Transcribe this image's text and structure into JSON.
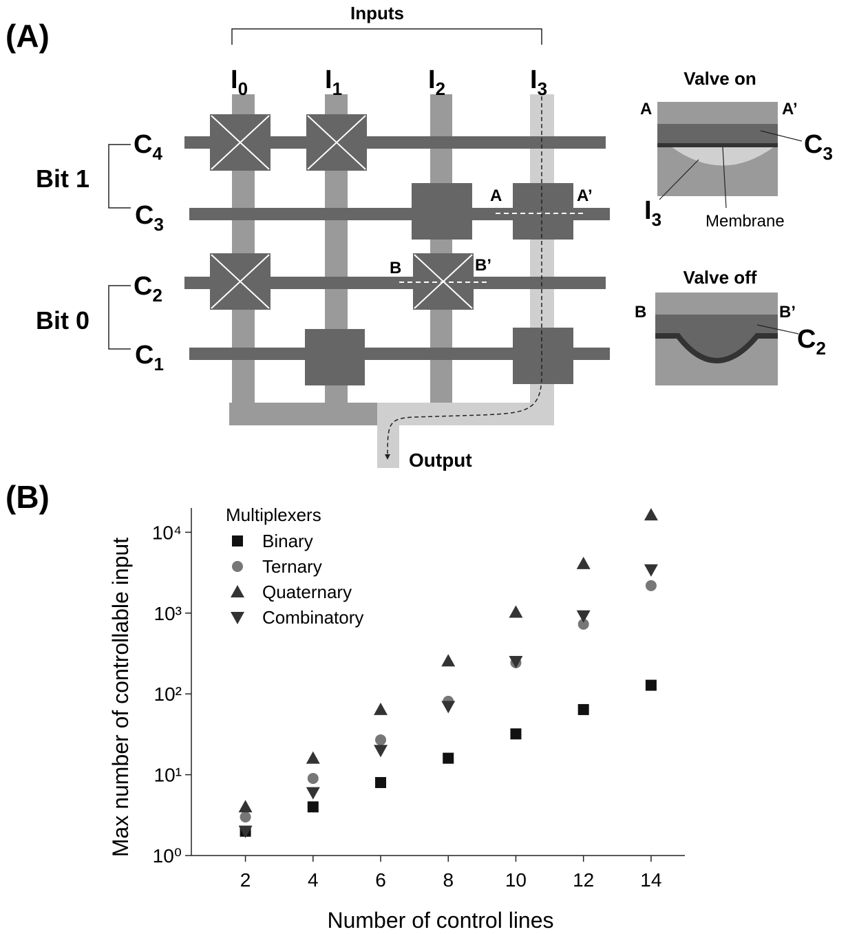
{
  "panel_a": {
    "label": "(A)",
    "inputs_title": "Inputs",
    "inputs": [
      {
        "main": "I",
        "sub": "0"
      },
      {
        "main": "I",
        "sub": "1"
      },
      {
        "main": "I",
        "sub": "2"
      },
      {
        "main": "I",
        "sub": "3"
      }
    ],
    "controls": [
      {
        "main": "C",
        "sub": "4"
      },
      {
        "main": "C",
        "sub": "3"
      },
      {
        "main": "C",
        "sub": "2"
      },
      {
        "main": "C",
        "sub": "1"
      }
    ],
    "bits": [
      "Bit 1",
      "Bit 0"
    ],
    "section_marks": [
      "A",
      "A’",
      "B",
      "B’"
    ],
    "output": "Output",
    "valve_on": {
      "title": "Valve on",
      "left": "A",
      "right": "A’",
      "control": {
        "main": "C",
        "sub": "3"
      },
      "input": {
        "main": "I",
        "sub": "3"
      },
      "membrane": "Membrane"
    },
    "valve_off": {
      "title": "Valve off",
      "left": "B",
      "right": "B’",
      "control": {
        "main": "C",
        "sub": "2"
      }
    }
  },
  "chart_data": {
    "type": "scatter",
    "panel_label": "(B)",
    "x_label": "Number of control lines",
    "y_label": "Max number of controllable input",
    "legend_title": "Multiplexers",
    "legend": "top-left",
    "x": [
      2,
      4,
      6,
      8,
      10,
      12,
      14
    ],
    "series": [
      {
        "name": "Binary",
        "color": "#111111",
        "marker": "square",
        "values": [
          2,
          4,
          8,
          16,
          32,
          64,
          128
        ]
      },
      {
        "name": "Ternary",
        "color": "#777777",
        "marker": "circle",
        "values": [
          3,
          9,
          27,
          81,
          243,
          729,
          2187
        ]
      },
      {
        "name": "Quaternary",
        "color": "#333333",
        "marker": "triangle-up",
        "values": [
          4,
          16,
          64,
          256,
          1024,
          4096,
          16384
        ]
      },
      {
        "name": "Combinatory",
        "color": "#333333",
        "marker": "triangle-down",
        "values": [
          2,
          6,
          20,
          70,
          252,
          924,
          3432
        ]
      }
    ],
    "xlim": [
      0.4,
      15
    ],
    "xticks": [
      2,
      4,
      6,
      8,
      10,
      12,
      14
    ],
    "ylim": [
      1,
      20000
    ],
    "log_y": true,
    "yticks": [
      {
        "value": 1,
        "label": "10⁰"
      },
      {
        "value": 10,
        "label": "10¹"
      },
      {
        "value": 100,
        "label": "10²"
      },
      {
        "value": 1000,
        "label": "10³"
      },
      {
        "value": 10000,
        "label": "10⁴"
      }
    ]
  }
}
